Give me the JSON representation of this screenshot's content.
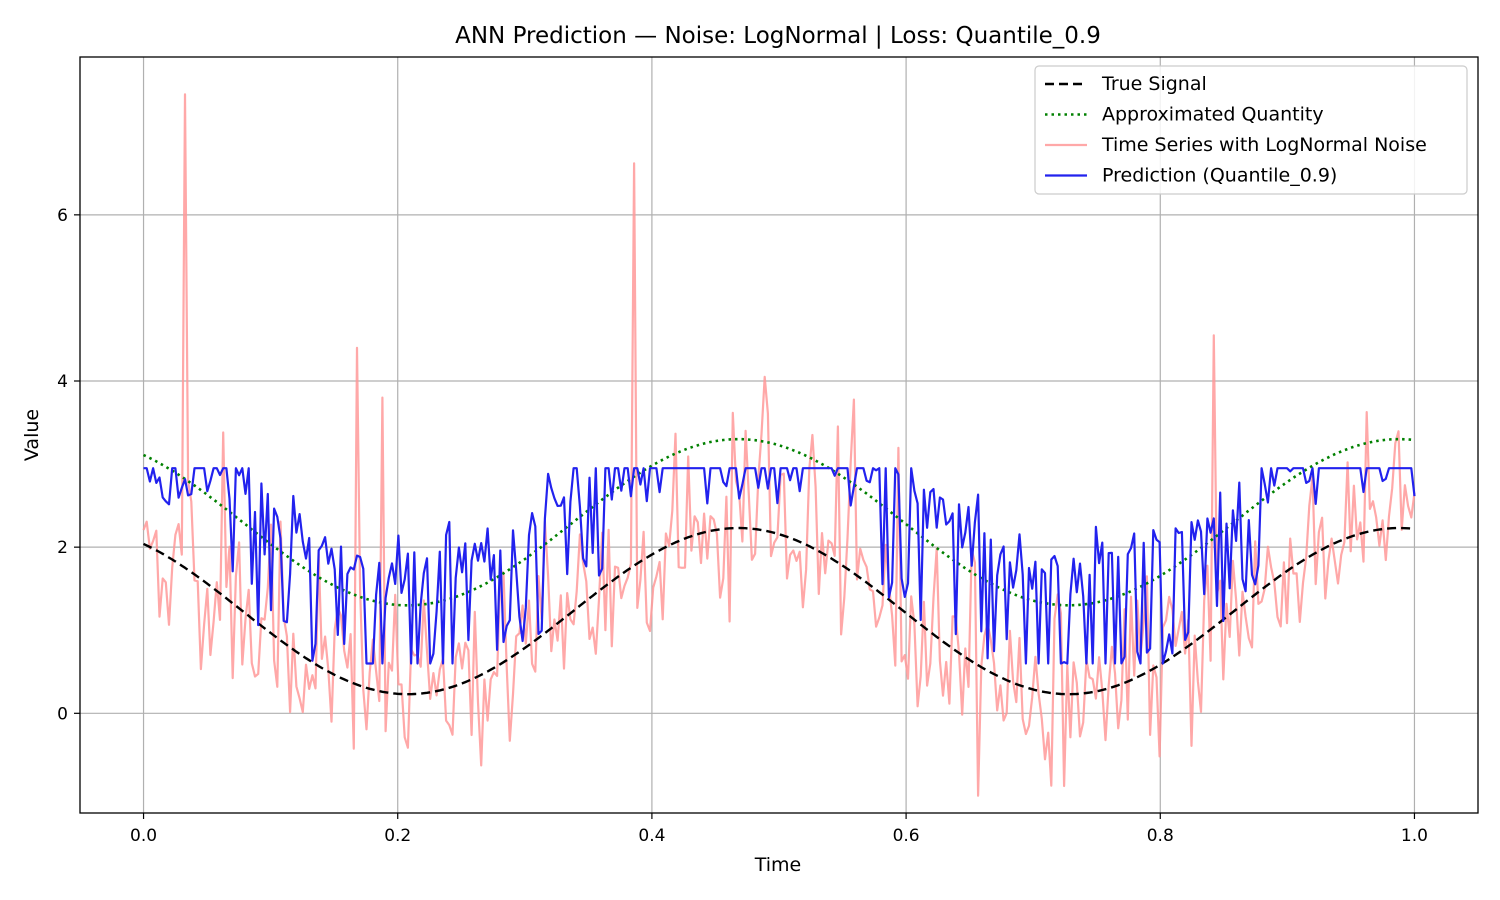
{
  "chart_data": {
    "type": "line",
    "title": "ANN Prediction — Noise: LogNormal | Loss: Quantile_0.9",
    "xlabel": "Time",
    "ylabel": "Value",
    "xlim": [
      -0.05,
      1.05
    ],
    "ylim": [
      -1.2,
      7.9
    ],
    "x_ticks": [
      0.0,
      0.2,
      0.4,
      0.6,
      0.8,
      1.0
    ],
    "x_tick_labels": [
      "0.0",
      "0.2",
      "0.4",
      "0.6",
      "0.8",
      "1.0"
    ],
    "y_ticks": [
      0,
      2,
      4,
      6
    ],
    "y_tick_labels": [
      "0",
      "2",
      "4",
      "6"
    ],
    "grid": true,
    "legend_position": "top-right",
    "series": [
      {
        "name": "True Signal",
        "color": "#000000",
        "style": "dashed",
        "function": "1.23 + 1.0*sin(2*pi*(t/0.52 + 0.35))",
        "samples": 400
      },
      {
        "name": "Approximated Quantity",
        "color": "#008000",
        "style": "dotted",
        "function": "2.3 + 1.0*sin(2*pi*(t/0.52 + 0.35))",
        "samples": 400
      },
      {
        "name": "Time Series with LogNormal Noise",
        "color": "#ff9999",
        "style": "solid",
        "opacity": 0.85,
        "samples": 400,
        "spikes": [
          [
            0.032,
            7.45
          ],
          [
            0.169,
            4.4
          ],
          [
            0.189,
            3.8
          ],
          [
            0.386,
            6.62
          ],
          [
            0.488,
            4.05
          ],
          [
            0.842,
            4.55
          ],
          [
            0.063,
            3.38
          ],
          [
            0.527,
            3.35
          ],
          [
            0.474,
            3.4
          ]
        ]
      },
      {
        "name": "Prediction (Quantile_0.9)",
        "color": "#2222ee",
        "style": "solid",
        "samples": 400,
        "cap": 2.95
      }
    ]
  }
}
